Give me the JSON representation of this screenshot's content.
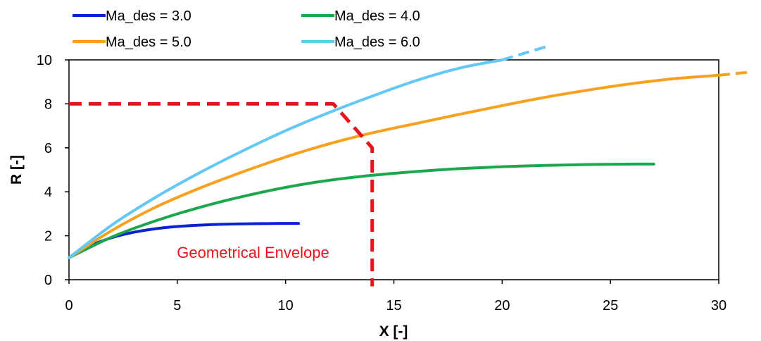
{
  "chart_data": {
    "type": "line",
    "xlabel": "X [-]",
    "ylabel": "R [-]",
    "xlim": [
      0,
      30
    ],
    "ylim": [
      0,
      10
    ],
    "xticks": [
      0,
      5,
      10,
      15,
      20,
      25,
      30
    ],
    "yticks": [
      0,
      2,
      4,
      6,
      8,
      10
    ],
    "grid": false,
    "legend_position": "top-left, above plot, two columns",
    "series": [
      {
        "name": "Ma_des = 3.0",
        "color": "#0a22d2",
        "x": [
          0,
          1,
          2,
          3,
          4,
          5,
          6,
          7,
          8,
          9,
          10,
          10.6
        ],
        "y": [
          1.0,
          1.55,
          1.92,
          2.16,
          2.32,
          2.42,
          2.48,
          2.52,
          2.54,
          2.55,
          2.56,
          2.56
        ]
      },
      {
        "name": "Ma_des = 4.0",
        "color": "#1ca64e",
        "x": [
          0,
          2,
          4,
          6,
          8,
          10,
          12,
          14,
          16,
          18,
          20,
          22,
          24,
          26,
          27
        ],
        "y": [
          1.0,
          1.95,
          2.68,
          3.28,
          3.78,
          4.2,
          4.52,
          4.75,
          4.92,
          5.05,
          5.14,
          5.2,
          5.24,
          5.26,
          5.26
        ]
      },
      {
        "name": "Ma_des = 5.0",
        "color": "#f7a11f",
        "x": [
          0,
          2,
          4,
          6,
          8,
          10,
          12,
          14,
          16,
          18,
          20,
          22,
          24,
          26,
          28,
          30
        ],
        "y": [
          1.0,
          2.25,
          3.3,
          4.15,
          4.9,
          5.58,
          6.18,
          6.68,
          7.1,
          7.52,
          7.92,
          8.3,
          8.63,
          8.92,
          9.15,
          9.3
        ],
        "dashed_extension": {
          "x": [
            30,
            31.5
          ],
          "y": [
            9.3,
            9.45
          ]
        }
      },
      {
        "name": "Ma_des = 6.0",
        "color": "#64c8f4",
        "x": [
          0,
          2,
          4,
          6,
          8,
          10,
          12,
          14,
          16,
          18,
          20
        ],
        "y": [
          1.0,
          2.5,
          3.75,
          4.85,
          5.85,
          6.78,
          7.6,
          8.35,
          9.05,
          9.62,
          10.0
        ],
        "dashed_extension": {
          "x": [
            20,
            22.2
          ],
          "y": [
            10.0,
            10.65
          ]
        }
      }
    ],
    "annotations": [
      {
        "text": "Geometrical Envelope",
        "color": "#e8141c",
        "x": 8.5,
        "y": 1.0,
        "envelope_line": {
          "style": "dashed",
          "x": [
            0,
            12.2,
            14.0,
            14.0
          ],
          "y": [
            8.0,
            8.0,
            6.0,
            -0.3
          ]
        }
      }
    ]
  }
}
